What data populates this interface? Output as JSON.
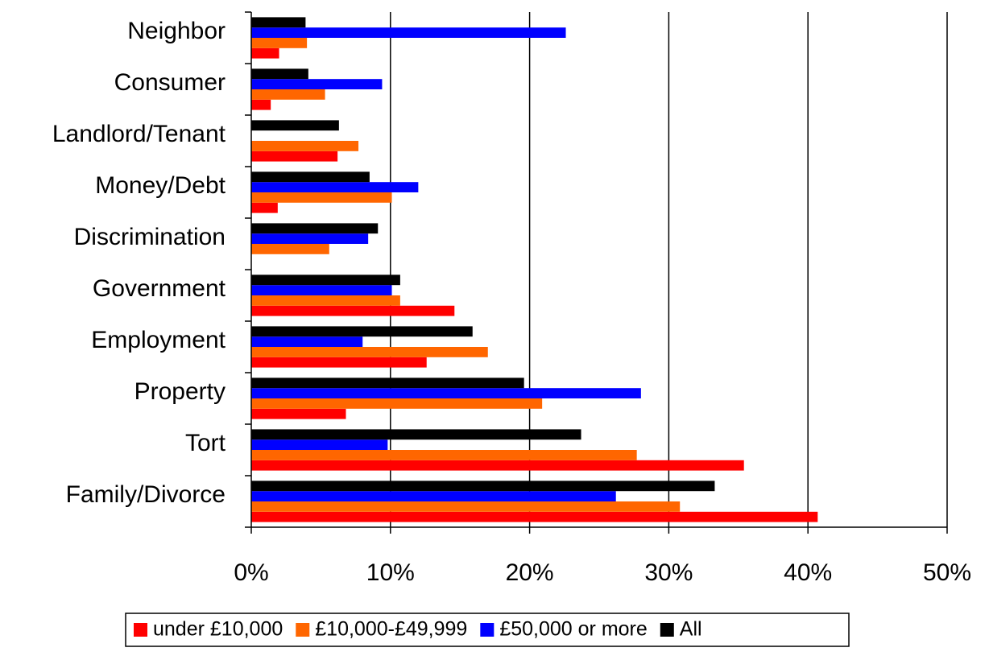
{
  "chart_data": {
    "type": "hbar",
    "categories": [
      "Neighbor",
      "Consumer",
      "Landlord/Tenant",
      "Money/Debt",
      "Discrimination",
      "Government",
      "Employment",
      "Property",
      "Tort",
      "Family/Divorce"
    ],
    "series": [
      {
        "name": "under £10,000",
        "color": "#ff0000",
        "values": [
          2.0,
          1.4,
          6.2,
          1.9,
          0,
          14.6,
          12.6,
          6.8,
          35.4,
          40.7
        ]
      },
      {
        "name": "£10,000-£49,999",
        "color": "#ff6600",
        "values": [
          4.0,
          5.3,
          7.7,
          10.1,
          5.6,
          10.7,
          17.0,
          20.9,
          27.7,
          30.8
        ]
      },
      {
        "name": "£50,000 or more",
        "color": "#0000ff",
        "values": [
          22.6,
          9.4,
          0,
          12.0,
          8.4,
          10.1,
          8.0,
          28.0,
          9.8,
          26.2
        ]
      },
      {
        "name": "All",
        "color": "#000000",
        "values": [
          3.9,
          4.1,
          6.3,
          8.5,
          9.1,
          10.7,
          15.9,
          19.6,
          23.7,
          33.3
        ]
      }
    ],
    "xlim": [
      0,
      50
    ],
    "xticks": [
      {
        "value": 0,
        "label": "0%"
      },
      {
        "value": 10,
        "label": "10%"
      },
      {
        "value": 20,
        "label": "20%"
      },
      {
        "value": 30,
        "label": "30%"
      },
      {
        "value": 40,
        "label": "40%"
      },
      {
        "value": 50,
        "label": "50%"
      }
    ],
    "grid": true,
    "legend": "bottom"
  }
}
